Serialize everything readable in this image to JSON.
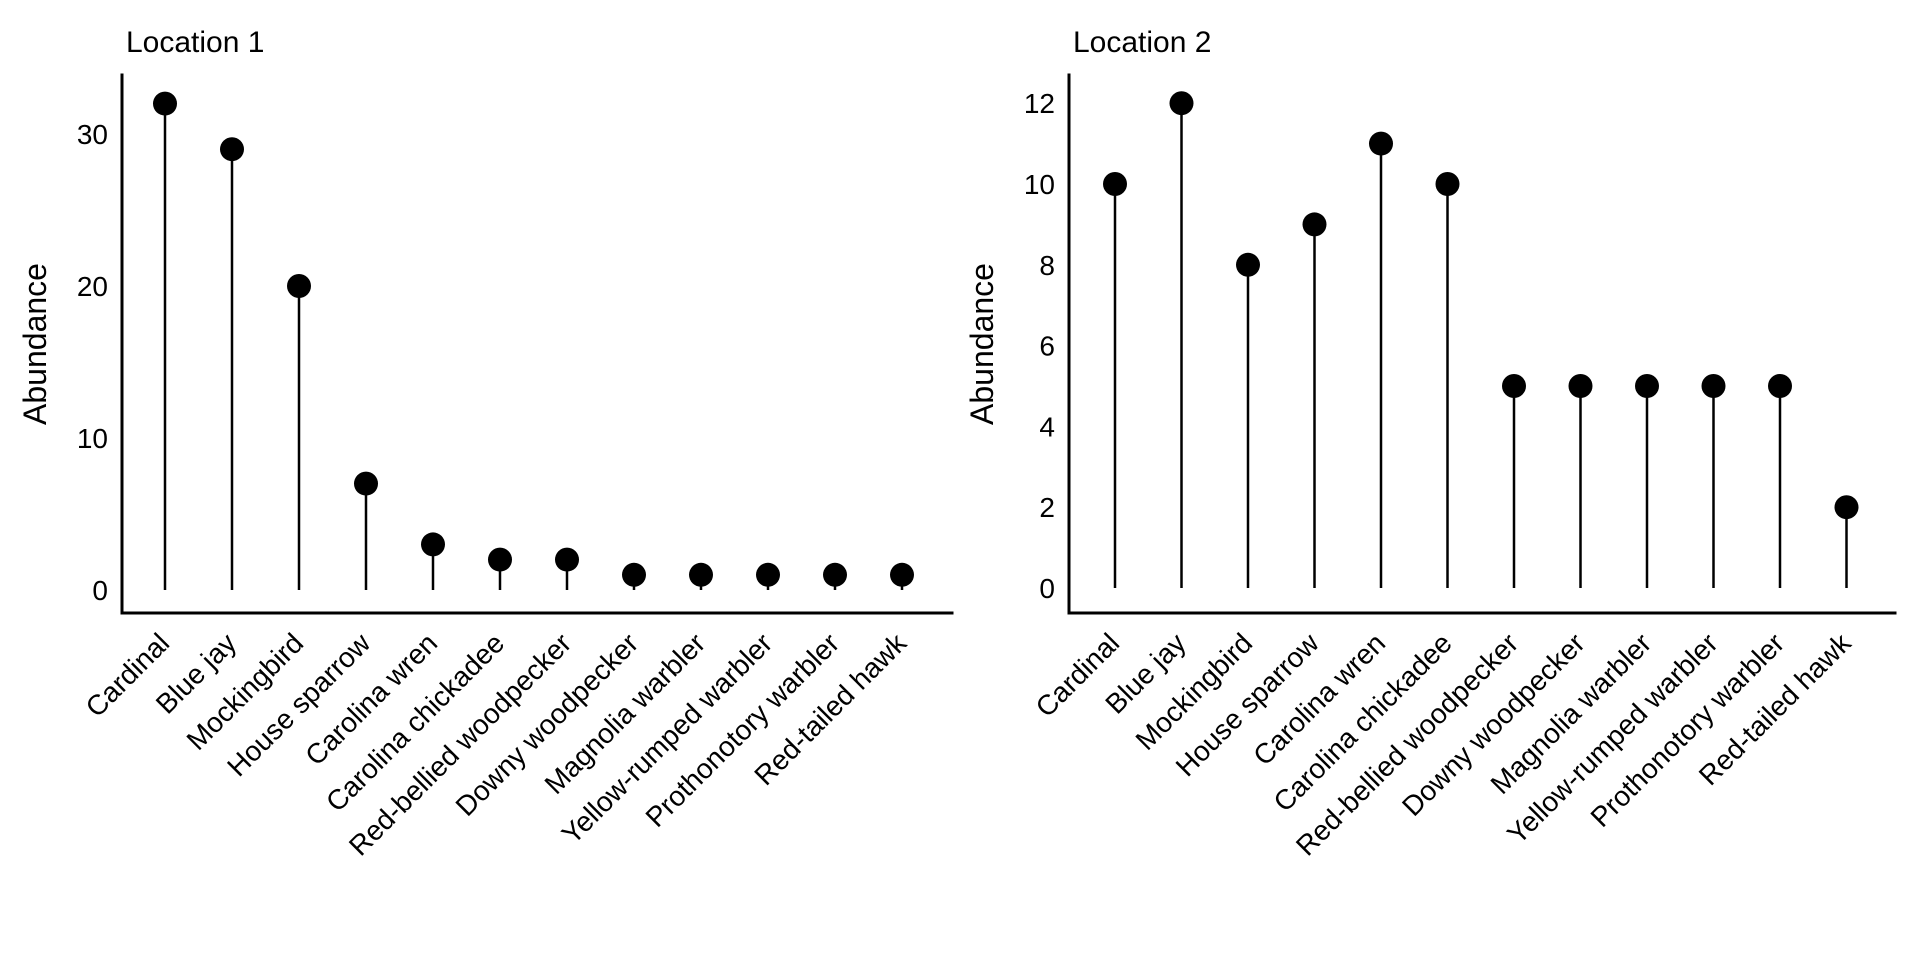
{
  "figure": {
    "background": "#ffffff",
    "foreground": "#000000"
  },
  "chart_data": [
    {
      "type": "lollipop",
      "title": "Location 1",
      "xlabel": "",
      "ylabel": "Abundance",
      "categories": [
        "Cardinal",
        "Blue jay",
        "Mockingbird",
        "House sparrow",
        "Carolina wren",
        "Carolina chickadee",
        "Red-bellied woodpecker",
        "Downy woodpecker",
        "Magnolia warbler",
        "Yellow-rumped warbler",
        "Prothonotory warbler",
        "Red-tailed hawk"
      ],
      "values": [
        32,
        29,
        20,
        7,
        3,
        2,
        2,
        1,
        1,
        1,
        1,
        1
      ],
      "yticks": [
        0,
        10,
        20,
        30
      ],
      "ylim": [
        0,
        33.8
      ],
      "grid": false,
      "legend_position": "none",
      "point_color": "#000000",
      "stem_color": "#000000",
      "axis_color": "#000000",
      "x_tick_angle_deg": 45
    },
    {
      "type": "lollipop",
      "title": "Location 2",
      "xlabel": "",
      "ylabel": "Abundance",
      "categories": [
        "Cardinal",
        "Blue jay",
        "Mockingbird",
        "House sparrow",
        "Carolina wren",
        "Carolina chickadee",
        "Red-bellied woodpecker",
        "Downy woodpecker",
        "Magnolia warbler",
        "Yellow-rumped warbler",
        "Prothonotory warbler",
        "Red-tailed hawk"
      ],
      "values": [
        10,
        12,
        8,
        9,
        11,
        10,
        5,
        5,
        5,
        5,
        5,
        2
      ],
      "yticks": [
        0,
        2,
        4,
        6,
        8,
        10,
        12
      ],
      "ylim": [
        0,
        13.3
      ],
      "grid": false,
      "legend_position": "none",
      "point_color": "#000000",
      "stem_color": "#000000",
      "axis_color": "#000000",
      "x_tick_angle_deg": 45
    }
  ]
}
